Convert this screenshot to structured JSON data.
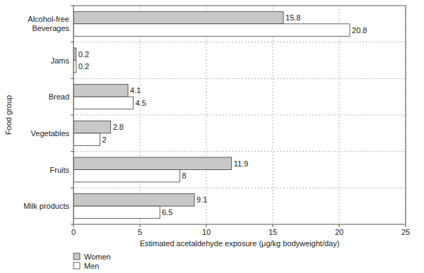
{
  "chart_data": {
    "type": "bar",
    "orientation": "horizontal",
    "categories": [
      "Alcohol-free Beverages",
      "Jams",
      "Bread",
      "Vegetables",
      "Fruits",
      "Milk products"
    ],
    "series": [
      {
        "name": "Women",
        "color": "#c8c8c8",
        "values": [
          15.8,
          0.2,
          4.1,
          2.8,
          11.9,
          9.1
        ]
      },
      {
        "name": "Men",
        "color": "#ffffff",
        "values": [
          20.8,
          0.2,
          4.5,
          2,
          8,
          6.5
        ]
      }
    ],
    "xlabel": "Estimated acetaldehyde exposure (μg/kg bodyweight/day)",
    "ylabel": "Food group",
    "xlim": [
      0,
      25
    ],
    "xticks": [
      0,
      5,
      10,
      15,
      20,
      25
    ],
    "grid": true,
    "data_labels": true,
    "legend": "bottom-left"
  }
}
